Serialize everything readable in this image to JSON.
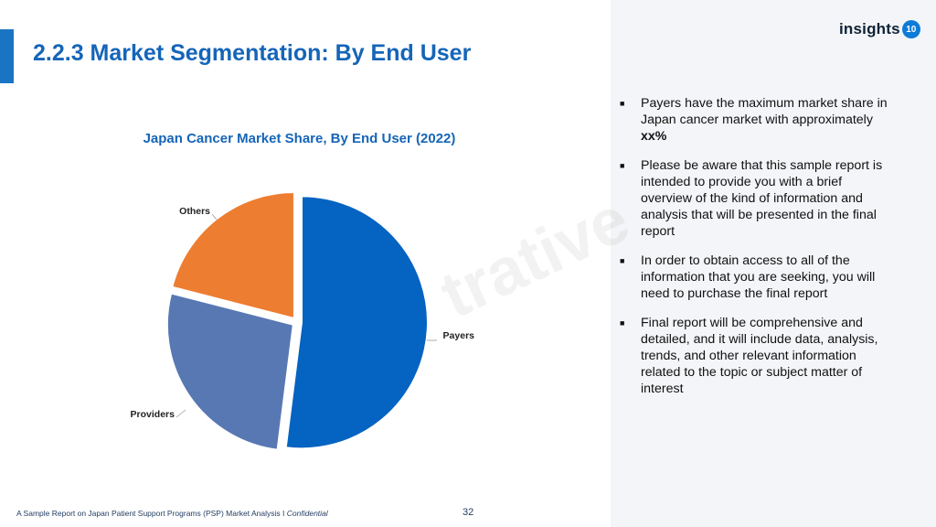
{
  "slide": {
    "title": "2.2.3 Market Segmentation: By End User",
    "footer": "A Sample Report on Japan Patient Support Programs (PSP) Market Analysis I ",
    "footer_italic": "Confidential",
    "page_number": "32",
    "watermark": "trative"
  },
  "logo": {
    "text": "insights",
    "badge": "10"
  },
  "bullets": [
    {
      "text": "Payers have the maximum market share in Japan cancer market with approximately ",
      "bold": "xx%"
    },
    {
      "text": "Please be aware that this sample report is intended to provide you with a brief overview of the kind of information and analysis that will be presented in the final report",
      "bold": ""
    },
    {
      "text": "In order to obtain access to all of the information that you are seeking, you will need to purchase the final report",
      "bold": ""
    },
    {
      "text": "Final report will be comprehensive and detailed, and it will include data, analysis, trends, and other relevant information related to the topic or subject matter of interest",
      "bold": ""
    }
  ],
  "colors": {
    "accent": "#1a74c4",
    "title": "#1565b8",
    "panel": "#f3f5f8"
  },
  "chart_data": {
    "type": "pie",
    "title": "Japan Cancer Market Share, By End User (2022)",
    "categories": [
      "Payers",
      "Providers",
      "Others"
    ],
    "values": [
      52,
      27,
      21
    ],
    "colors": [
      "#0563c1",
      "#5878b4",
      "#ed7d31"
    ],
    "legend": "none"
  }
}
